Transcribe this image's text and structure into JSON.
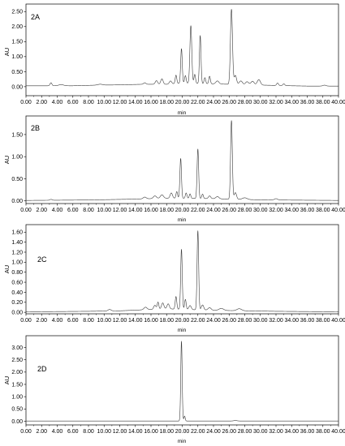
{
  "chart_data": [
    {
      "type": "line",
      "label": "2A",
      "xlabel": "min",
      "ylabel": "AU",
      "xlim": [
        0,
        40
      ],
      "ylim": [
        -0.3,
        2.75
      ],
      "x_ticks": [
        "0.00",
        "2.00",
        "4.00",
        "6.00",
        "8.00",
        "10.00",
        "12.00",
        "14.00",
        "16.00",
        "18.00",
        "20.00",
        "22.00",
        "24.00",
        "26.00",
        "28.00",
        "30.00",
        "32.00",
        "34.00",
        "36.00",
        "38.00",
        "40.00"
      ],
      "y_ticks": [
        {
          "v": 0.0,
          "t": "0.00"
        },
        {
          "v": 0.5,
          "t": "0.50"
        },
        {
          "v": 1.0,
          "t": "1.00"
        },
        {
          "v": 1.5,
          "t": "1.50"
        },
        {
          "v": 2.0,
          "t": "2.00"
        },
        {
          "v": 2.5,
          "t": "2.50"
        }
      ],
      "baseline": [
        [
          0,
          0.03
        ],
        [
          3,
          0.03
        ],
        [
          6,
          0.03
        ],
        [
          9,
          0.05
        ],
        [
          12,
          0.06
        ],
        [
          15,
          0.08
        ],
        [
          18,
          0.08
        ],
        [
          20,
          0.12
        ],
        [
          23,
          0.1
        ],
        [
          26,
          0.08
        ],
        [
          29,
          0.06
        ],
        [
          32,
          0.04
        ],
        [
          36,
          0.02
        ],
        [
          40,
          0.02
        ]
      ],
      "peaks": [
        [
          3.2,
          0.1,
          0.12
        ],
        [
          4.5,
          0.04,
          0.3
        ],
        [
          9.5,
          0.03,
          0.3
        ],
        [
          15.2,
          0.05,
          0.15
        ],
        [
          16.7,
          0.12,
          0.15
        ],
        [
          17.4,
          0.18,
          0.15
        ],
        [
          18.5,
          0.1,
          0.15
        ],
        [
          19.2,
          0.28,
          0.1
        ],
        [
          19.9,
          1.15,
          0.1
        ],
        [
          20.4,
          0.25,
          0.1
        ],
        [
          21.1,
          1.92,
          0.12
        ],
        [
          21.6,
          0.3,
          0.1
        ],
        [
          22.3,
          1.6,
          0.1
        ],
        [
          22.9,
          0.2,
          0.1
        ],
        [
          23.5,
          0.25,
          0.1
        ],
        [
          24.5,
          0.1,
          0.2
        ],
        [
          26.3,
          2.5,
          0.13
        ],
        [
          26.8,
          0.3,
          0.15
        ],
        [
          27.5,
          0.12,
          0.2
        ],
        [
          28.3,
          0.1,
          0.2
        ],
        [
          29.0,
          0.12,
          0.2
        ],
        [
          29.8,
          0.18,
          0.2
        ],
        [
          32.2,
          0.08,
          0.12
        ],
        [
          33.0,
          0.06,
          0.12
        ],
        [
          38.2,
          0.03,
          0.2
        ]
      ]
    },
    {
      "type": "line",
      "label": "2B",
      "xlabel": "min",
      "ylabel": "AU",
      "xlim": [
        0,
        40
      ],
      "ylim": [
        -0.06,
        1.92
      ],
      "x_ticks": [
        "0.00",
        "2.00",
        "4.00",
        "6.00",
        "8.00",
        "10.00",
        "12.00",
        "14.00",
        "16.00",
        "18.00",
        "20.00",
        "22.00",
        "24.00",
        "26.00",
        "28.00",
        "30.00",
        "32.00",
        "34.00",
        "36.00",
        "38.00",
        "40.00"
      ],
      "y_ticks": [
        {
          "v": 0.0,
          "t": "0.00"
        },
        {
          "v": 0.5,
          "t": "0.50"
        },
        {
          "v": 1.0,
          "t": "1.00"
        },
        {
          "v": 1.5,
          "t": "1.50"
        }
      ],
      "baseline": [
        [
          0,
          0.01
        ],
        [
          8,
          0.02
        ],
        [
          14,
          0.04
        ],
        [
          18,
          0.06
        ],
        [
          20,
          0.06
        ],
        [
          24,
          0.05
        ],
        [
          28,
          0.03
        ],
        [
          32,
          0.02
        ],
        [
          40,
          0.01
        ]
      ],
      "peaks": [
        [
          3.2,
          0.02,
          0.15
        ],
        [
          15.2,
          0.04,
          0.2
        ],
        [
          16.5,
          0.06,
          0.2
        ],
        [
          17.4,
          0.08,
          0.2
        ],
        [
          18.6,
          0.12,
          0.15
        ],
        [
          19.3,
          0.15,
          0.1
        ],
        [
          19.8,
          0.9,
          0.1
        ],
        [
          20.5,
          0.12,
          0.1
        ],
        [
          21.0,
          0.1,
          0.1
        ],
        [
          22.0,
          1.12,
          0.1
        ],
        [
          22.6,
          0.1,
          0.1
        ],
        [
          23.5,
          0.06,
          0.15
        ],
        [
          24.5,
          0.05,
          0.2
        ],
        [
          26.3,
          1.78,
          0.11
        ],
        [
          26.8,
          0.15,
          0.15
        ],
        [
          28.0,
          0.04,
          0.3
        ],
        [
          32.0,
          0.03,
          0.2
        ]
      ]
    },
    {
      "type": "line",
      "label": "2C",
      "xlabel": "min",
      "ylabel": "AU",
      "xlim": [
        0,
        40
      ],
      "ylim": [
        -0.03,
        1.75
      ],
      "x_ticks": [
        "0.00",
        "2.00",
        "4.00",
        "6.00",
        "8.00",
        "10.00",
        "12.00",
        "14.00",
        "16.00",
        "18.00",
        "20.00",
        "22.00",
        "24.00",
        "26.00",
        "28.00",
        "30.00",
        "32.00",
        "34.00",
        "36.00",
        "38.00",
        "40.00"
      ],
      "y_ticks": [
        {
          "v": 0.0,
          "t": "0.00"
        },
        {
          "v": 0.2,
          "t": "0.20"
        },
        {
          "v": 0.4,
          "t": "0.40"
        },
        {
          "v": 0.6,
          "t": "0.60"
        },
        {
          "v": 0.8,
          "t": "0.80"
        },
        {
          "v": 1.0,
          "t": "1.00"
        },
        {
          "v": 1.2,
          "t": "1.20"
        },
        {
          "v": 1.4,
          "t": "1.40"
        },
        {
          "v": 1.6,
          "t": "1.60"
        }
      ],
      "baseline": [
        [
          0,
          0.01
        ],
        [
          8,
          0.02
        ],
        [
          12,
          0.03
        ],
        [
          15,
          0.05
        ],
        [
          18,
          0.07
        ],
        [
          20,
          0.06
        ],
        [
          24,
          0.04
        ],
        [
          28,
          0.03
        ],
        [
          32,
          0.02
        ],
        [
          40,
          0.01
        ]
      ],
      "peaks": [
        [
          10.7,
          0.03,
          0.2
        ],
        [
          15.3,
          0.05,
          0.2
        ],
        [
          16.5,
          0.08,
          0.15
        ],
        [
          16.9,
          0.14,
          0.1
        ],
        [
          17.5,
          0.12,
          0.15
        ],
        [
          18.2,
          0.1,
          0.15
        ],
        [
          19.2,
          0.25,
          0.1
        ],
        [
          19.9,
          1.2,
          0.1
        ],
        [
          20.4,
          0.2,
          0.1
        ],
        [
          21.0,
          0.08,
          0.15
        ],
        [
          22.0,
          1.58,
          0.1
        ],
        [
          22.6,
          0.1,
          0.15
        ],
        [
          23.5,
          0.05,
          0.2
        ],
        [
          25.0,
          0.04,
          0.3
        ],
        [
          27.3,
          0.04,
          0.3
        ]
      ]
    },
    {
      "type": "line",
      "label": "2D",
      "xlabel": "min",
      "ylabel": "AU",
      "xlim": [
        0,
        40
      ],
      "ylim": [
        -0.15,
        3.48
      ],
      "x_ticks": [
        "0.00",
        "2.00",
        "4.00",
        "6.00",
        "8.00",
        "10.00",
        "12.00",
        "14.00",
        "16.00",
        "18.00",
        "20.00",
        "22.00",
        "24.00",
        "26.00",
        "28.00",
        "30.00",
        "32.00",
        "34.00",
        "36.00",
        "38.00",
        "40.00"
      ],
      "y_ticks": [
        {
          "v": 0.0,
          "t": "0.00"
        },
        {
          "v": 0.5,
          "t": "0.50"
        },
        {
          "v": 1.0,
          "t": "1.00"
        },
        {
          "v": 1.5,
          "t": "1.50"
        },
        {
          "v": 2.0,
          "t": "2.00"
        },
        {
          "v": 2.5,
          "t": "2.50"
        },
        {
          "v": 3.0,
          "t": "3.00"
        }
      ],
      "baseline": [
        [
          0,
          0.01
        ],
        [
          40,
          0.01
        ]
      ],
      "peaks": [
        [
          19.9,
          3.25,
          0.09
        ],
        [
          20.3,
          0.2,
          0.08
        ],
        [
          26.8,
          0.02,
          0.2
        ]
      ]
    }
  ]
}
